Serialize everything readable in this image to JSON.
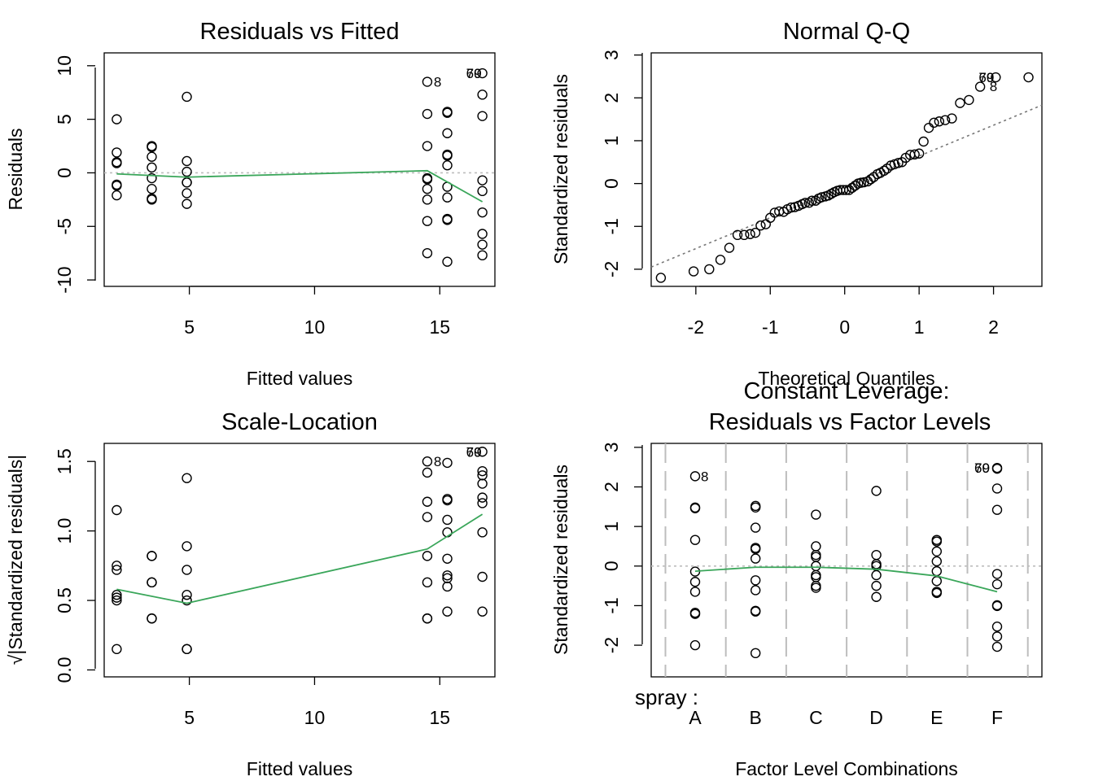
{
  "chart_data": [
    {
      "type": "scatter",
      "title": "Residuals vs Fitted",
      "xlabel": "Fitted values",
      "ylabel": "Residuals",
      "xlim": [
        1.6,
        17.2
      ],
      "ylim": [
        -10.6,
        11.2
      ],
      "xticks": [
        5,
        10,
        15
      ],
      "yticks": [
        -10,
        -5,
        0,
        5,
        10
      ],
      "reference_line": {
        "y": 0,
        "style": "dotted",
        "color": "#bdbdbd"
      },
      "smoother_color": "#3aa65a",
      "point_labels": [
        {
          "text": "8",
          "x": 14.5,
          "y": 8.5
        },
        {
          "text": "70",
          "x": 16.7,
          "y": 9.3
        },
        {
          "text": "69",
          "x": 16.7,
          "y": 9.3
        }
      ],
      "series": [
        {
          "values": [
            [
              2.1,
              5.0
            ],
            [
              2.1,
              1.9
            ],
            [
              2.1,
              1.0
            ],
            [
              2.1,
              0.9
            ],
            [
              2.1,
              -1.1
            ],
            [
              2.1,
              -1.2
            ],
            [
              2.1,
              -2.1
            ],
            [
              3.5,
              2.5
            ],
            [
              3.5,
              2.4
            ],
            [
              3.5,
              1.5
            ],
            [
              3.5,
              0.5
            ],
            [
              3.5,
              -0.5
            ],
            [
              3.5,
              -1.5
            ],
            [
              3.5,
              -2.5
            ],
            [
              3.5,
              -2.4
            ],
            [
              4.9,
              7.1
            ],
            [
              4.9,
              1.1
            ],
            [
              4.9,
              0.1
            ],
            [
              4.9,
              -0.9
            ],
            [
              4.9,
              -1.9
            ],
            [
              4.9,
              -2.9
            ],
            [
              4.9,
              -0.9
            ],
            [
              14.5,
              8.5
            ],
            [
              14.5,
              5.5
            ],
            [
              14.5,
              2.5
            ],
            [
              14.5,
              -0.5
            ],
            [
              14.5,
              -1.5
            ],
            [
              14.5,
              -2.5
            ],
            [
              14.5,
              -4.5
            ],
            [
              14.5,
              -7.5
            ],
            [
              14.5,
              -0.6
            ],
            [
              15.3,
              5.7
            ],
            [
              15.3,
              5.6
            ],
            [
              15.3,
              3.7
            ],
            [
              15.3,
              1.7
            ],
            [
              15.3,
              1.6
            ],
            [
              15.3,
              0.7
            ],
            [
              15.3,
              -1.3
            ],
            [
              15.3,
              -2.3
            ],
            [
              15.3,
              -4.3
            ],
            [
              15.3,
              -4.4
            ],
            [
              15.3,
              -8.3
            ],
            [
              16.7,
              9.3
            ],
            [
              16.7,
              7.3
            ],
            [
              16.7,
              5.3
            ],
            [
              16.7,
              -0.7
            ],
            [
              16.7,
              -1.7
            ],
            [
              16.7,
              -3.7
            ],
            [
              16.7,
              -5.7
            ],
            [
              16.7,
              -6.7
            ],
            [
              16.7,
              -7.7
            ]
          ]
        },
        {
          "name": "",
          "type": "line",
          "values": [
            [
              2.1,
              -0.1
            ],
            [
              4.9,
              -0.4
            ],
            [
              14.5,
              0.2
            ],
            [
              16.7,
              -2.7
            ]
          ]
        }
      ]
    },
    {
      "type": "scatter",
      "title": "Normal Q-Q",
      "xlabel": "Theoretical Quantiles",
      "ylabel": "Standardized residuals",
      "xlim": [
        -2.6,
        2.65
      ],
      "ylim": [
        -2.4,
        3.05
      ],
      "xticks": [
        -2,
        -1,
        0,
        1,
        2
      ],
      "yticks": [
        -2,
        -1,
        0,
        1,
        2,
        3
      ],
      "reference_line": {
        "from": [
          -2.6,
          -1.95
        ],
        "to": [
          2.65,
          1.83
        ],
        "style": "dotted",
        "color": "#777777"
      },
      "point_labels": [
        {
          "text": "8",
          "x": 1.86,
          "y": 2.27
        },
        {
          "text": "70",
          "x": 2.02,
          "y": 2.48
        },
        {
          "text": "69",
          "x": 2.02,
          "y": 2.48
        }
      ],
      "series": [
        {
          "values": [
            [
              -2.47,
              -2.2
            ],
            [
              -2.03,
              -2.05
            ],
            [
              -1.82,
              -2.0
            ],
            [
              -1.67,
              -1.78
            ],
            [
              -1.55,
              -1.5
            ],
            [
              -1.44,
              -1.2
            ],
            [
              -1.35,
              -1.2
            ],
            [
              -1.27,
              -1.18
            ],
            [
              -1.2,
              -1.15
            ],
            [
              -1.13,
              -0.98
            ],
            [
              -1.06,
              -0.95
            ],
            [
              -1.0,
              -0.8
            ],
            [
              -0.94,
              -0.68
            ],
            [
              -0.88,
              -0.65
            ],
            [
              -0.82,
              -0.66
            ],
            [
              -0.77,
              -0.6
            ],
            [
              -0.72,
              -0.56
            ],
            [
              -0.67,
              -0.55
            ],
            [
              -0.62,
              -0.52
            ],
            [
              -0.57,
              -0.48
            ],
            [
              -0.53,
              -0.45
            ],
            [
              -0.48,
              -0.45
            ],
            [
              -0.44,
              -0.4
            ],
            [
              -0.39,
              -0.4
            ],
            [
              -0.35,
              -0.35
            ],
            [
              -0.31,
              -0.32
            ],
            [
              -0.26,
              -0.3
            ],
            [
              -0.22,
              -0.28
            ],
            [
              -0.18,
              -0.24
            ],
            [
              -0.14,
              -0.2
            ],
            [
              -0.1,
              -0.17
            ],
            [
              -0.06,
              -0.15
            ],
            [
              -0.02,
              -0.15
            ],
            [
              0.02,
              -0.15
            ],
            [
              0.06,
              -0.15
            ],
            [
              0.1,
              -0.1
            ],
            [
              0.14,
              -0.05
            ],
            [
              0.18,
              0.0
            ],
            [
              0.22,
              0.02
            ],
            [
              0.26,
              0.03
            ],
            [
              0.31,
              0.05
            ],
            [
              0.35,
              0.1
            ],
            [
              0.39,
              0.15
            ],
            [
              0.44,
              0.22
            ],
            [
              0.48,
              0.25
            ],
            [
              0.53,
              0.3
            ],
            [
              0.57,
              0.35
            ],
            [
              0.62,
              0.42
            ],
            [
              0.67,
              0.45
            ],
            [
              0.72,
              0.48
            ],
            [
              0.77,
              0.5
            ],
            [
              0.82,
              0.6
            ],
            [
              0.88,
              0.67
            ],
            [
              0.94,
              0.68
            ],
            [
              1.0,
              0.7
            ],
            [
              1.06,
              0.98
            ],
            [
              1.13,
              1.3
            ],
            [
              1.2,
              1.42
            ],
            [
              1.27,
              1.45
            ],
            [
              1.35,
              1.48
            ],
            [
              1.44,
              1.52
            ],
            [
              1.55,
              1.88
            ],
            [
              1.67,
              1.95
            ],
            [
              1.82,
              2.26
            ],
            [
              2.03,
              2.48
            ],
            [
              2.47,
              2.48
            ]
          ]
        }
      ]
    },
    {
      "type": "scatter",
      "title": "Scale-Location",
      "xlabel": "Fitted values",
      "ylabel": "√|Standardized residuals|",
      "xlim": [
        1.6,
        17.2
      ],
      "ylim": [
        -0.05,
        1.63
      ],
      "xticks": [
        5,
        10,
        15
      ],
      "yticks": [
        0.0,
        0.5,
        1.0,
        1.5
      ],
      "smoother_color": "#3aa65a",
      "point_labels": [
        {
          "text": "8",
          "x": 14.5,
          "y": 1.5
        },
        {
          "text": "70",
          "x": 16.7,
          "y": 1.57
        },
        {
          "text": "69",
          "x": 16.7,
          "y": 1.57
        }
      ],
      "series": [
        {
          "values": [
            [
              2.1,
              1.15
            ],
            [
              2.1,
              0.75
            ],
            [
              2.1,
              0.72
            ],
            [
              2.1,
              0.54
            ],
            [
              2.1,
              0.52
            ],
            [
              2.1,
              0.5
            ],
            [
              2.1,
              0.15
            ],
            [
              3.5,
              0.82
            ],
            [
              3.5,
              0.82
            ],
            [
              3.5,
              0.63
            ],
            [
              3.5,
              0.63
            ],
            [
              3.5,
              0.37
            ],
            [
              3.5,
              0.37
            ],
            [
              4.9,
              1.38
            ],
            [
              4.9,
              0.89
            ],
            [
              4.9,
              0.72
            ],
            [
              4.9,
              0.54
            ],
            [
              4.9,
              0.5
            ],
            [
              4.9,
              0.15
            ],
            [
              4.9,
              0.15
            ],
            [
              14.5,
              1.5
            ],
            [
              14.5,
              1.42
            ],
            [
              14.5,
              1.21
            ],
            [
              14.5,
              1.1
            ],
            [
              14.5,
              0.82
            ],
            [
              14.5,
              0.63
            ],
            [
              14.5,
              0.37
            ],
            [
              14.5,
              0.37
            ],
            [
              15.3,
              1.49
            ],
            [
              15.3,
              1.23
            ],
            [
              15.3,
              1.22
            ],
            [
              15.3,
              1.08
            ],
            [
              15.3,
              0.99
            ],
            [
              15.3,
              0.8
            ],
            [
              15.3,
              0.68
            ],
            [
              15.3,
              0.66
            ],
            [
              15.3,
              0.6
            ],
            [
              15.3,
              0.42
            ],
            [
              16.7,
              1.57
            ],
            [
              16.7,
              1.43
            ],
            [
              16.7,
              1.4
            ],
            [
              16.7,
              1.34
            ],
            [
              16.7,
              1.24
            ],
            [
              16.7,
              1.2
            ],
            [
              16.7,
              0.99
            ],
            [
              16.7,
              0.67
            ],
            [
              16.7,
              0.42
            ]
          ]
        },
        {
          "name": "",
          "type": "line",
          "values": [
            [
              2.1,
              0.58
            ],
            [
              4.9,
              0.48
            ],
            [
              14.5,
              0.87
            ],
            [
              16.7,
              1.12
            ]
          ]
        }
      ]
    },
    {
      "type": "scatter",
      "title": "Constant Leverage:",
      "subtitle": "Residuals vs Factor Levels",
      "xlabel": "Factor Level Combinations",
      "ylabel": "Standardized residuals",
      "factor_label": "spray :",
      "categories": [
        "A",
        "B",
        "C",
        "D",
        "E",
        "F"
      ],
      "ylim": [
        -2.8,
        3.1
      ],
      "yticks": [
        -2,
        -1,
        0,
        1,
        2,
        3
      ],
      "reference_line": {
        "y": 0,
        "style": "dotted",
        "color": "#bdbdbd"
      },
      "smoother_color": "#3aa65a",
      "point_labels": [
        {
          "text": "8",
          "category": "A",
          "y": 2.27
        },
        {
          "text": "70",
          "category": "F",
          "y": 2.48
        },
        {
          "text": "69",
          "category": "F",
          "y": 2.48
        }
      ],
      "series": [
        {
          "values": [
            [
              "A",
              2.27
            ],
            [
              "A",
              1.48
            ],
            [
              "A",
              1.46
            ],
            [
              "A",
              0.66
            ],
            [
              "A",
              -0.14
            ],
            [
              "A",
              -0.4
            ],
            [
              "A",
              -0.65
            ],
            [
              "A",
              -1.18
            ],
            [
              "A",
              -1.21
            ],
            [
              "A",
              -2.0
            ],
            [
              "B",
              1.52
            ],
            [
              "B",
              1.48
            ],
            [
              "B",
              0.97
            ],
            [
              "B",
              0.46
            ],
            [
              "B",
              0.43
            ],
            [
              "B",
              0.19
            ],
            [
              "B",
              -0.36
            ],
            [
              "B",
              -0.61
            ],
            [
              "B",
              -1.13
            ],
            [
              "B",
              -1.15
            ],
            [
              "B",
              -2.2
            ],
            [
              "C",
              1.3
            ],
            [
              "C",
              0.5
            ],
            [
              "C",
              0.28
            ],
            [
              "C",
              0.23
            ],
            [
              "C",
              0.0
            ],
            [
              "C",
              -0.23
            ],
            [
              "C",
              -0.28
            ],
            [
              "C",
              -0.5
            ],
            [
              "C",
              -0.55
            ],
            [
              "D",
              1.9
            ],
            [
              "D",
              0.28
            ],
            [
              "D",
              0.05
            ],
            [
              "D",
              0.0
            ],
            [
              "D",
              -0.23
            ],
            [
              "D",
              -0.5
            ],
            [
              "D",
              -0.78
            ],
            [
              "E",
              0.66
            ],
            [
              "E",
              0.62
            ],
            [
              "E",
              0.37
            ],
            [
              "E",
              0.12
            ],
            [
              "E",
              -0.13
            ],
            [
              "E",
              -0.38
            ],
            [
              "E",
              -0.65
            ],
            [
              "E",
              -0.68
            ],
            [
              "F",
              2.48
            ],
            [
              "F",
              2.46
            ],
            [
              "F",
              1.96
            ],
            [
              "F",
              1.42
            ],
            [
              "F",
              -0.2
            ],
            [
              "F",
              -0.46
            ],
            [
              "F",
              -0.99
            ],
            [
              "F",
              -1.01
            ],
            [
              "F",
              -1.53
            ],
            [
              "F",
              -1.78
            ],
            [
              "F",
              -2.04
            ]
          ]
        },
        {
          "name": "",
          "type": "line",
          "values": [
            [
              "A",
              -0.13
            ],
            [
              "B",
              -0.03
            ],
            [
              "C",
              -0.03
            ],
            [
              "D",
              -0.08
            ],
            [
              "E",
              -0.25
            ],
            [
              "F",
              -0.65
            ]
          ]
        }
      ]
    }
  ]
}
